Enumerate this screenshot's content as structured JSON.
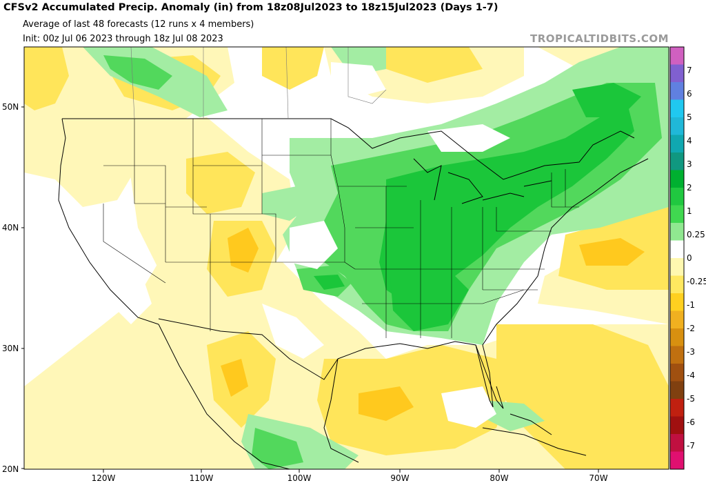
{
  "header": {
    "title": "CFSv2 Accumulated Precip. Anomaly (in) from 18z08Jul2023 to 18z15Jul2023 (Days 1-7)",
    "subtitle_line1": "Average of last 48 forecasts (12 runs x 4 members)",
    "subtitle_line2": "Init: 00z Jul 06 2023 through 18z Jul 08 2023",
    "watermark": "TROPICALTIDBITS.COM"
  },
  "map": {
    "variable": "Accumulated Precip. Anomaly",
    "units": "in",
    "lat_labels": [
      "50N",
      "40N",
      "30N",
      "20N"
    ],
    "lon_labels": [
      "120W",
      "110W",
      "100W",
      "90W",
      "80W",
      "70W"
    ]
  },
  "colorbar": {
    "labels": [
      "7",
      "6",
      "5",
      "4",
      "3",
      "2",
      "1",
      "0.25",
      "0",
      "-0.25",
      "-1",
      "-2",
      "-3",
      "-4",
      "-5",
      "-6",
      "-7"
    ],
    "colors": [
      "#d060c0",
      "#8060d0",
      "#6080e0",
      "#20c8f0",
      "#20b8d8",
      "#10a8b0",
      "#109880",
      "#00b030",
      "#20c840",
      "#40d850",
      "#90e890",
      "#ffffff",
      "#fff8b0",
      "#ffe860",
      "#ffd020",
      "#f0b020",
      "#d89010",
      "#c07010",
      "#a05010",
      "#804010",
      "#c02010",
      "#a01010",
      "#c01040",
      "#e01070"
    ]
  }
}
